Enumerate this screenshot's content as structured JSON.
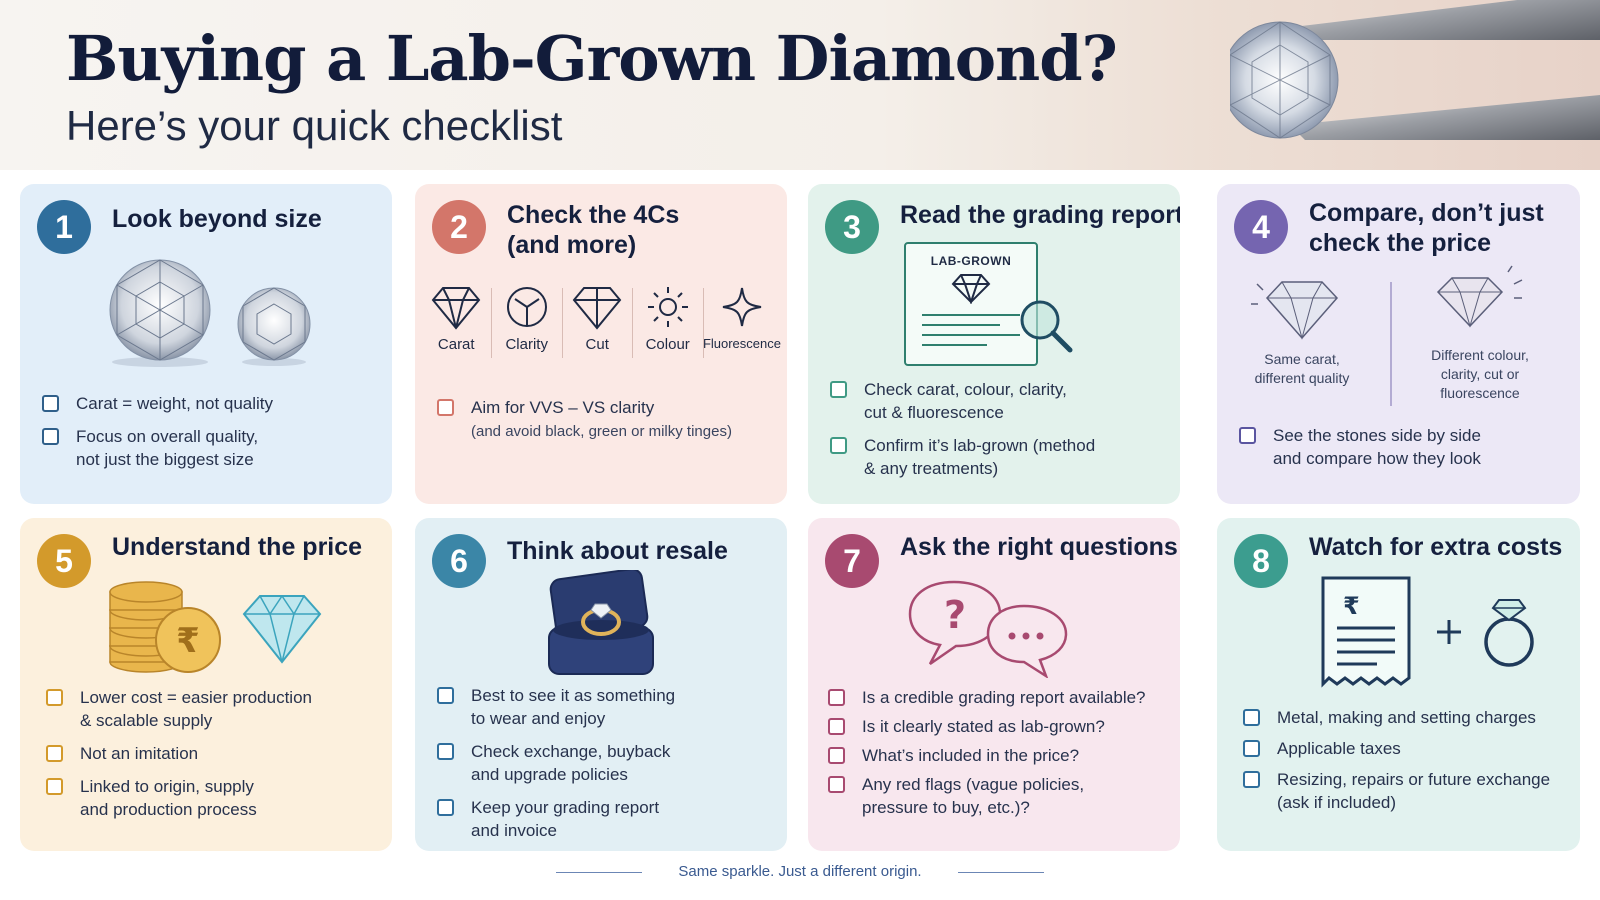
{
  "header": {
    "title": "Buying a Lab-Grown Diamond?",
    "subtitle": "Here’s your quick checklist"
  },
  "cards": [
    {
      "number": "1",
      "title": "Look beyond size",
      "checks": [
        "Carat = weight, not quality",
        "Focus on overall quality,\nnot just the biggest size"
      ]
    },
    {
      "number": "2",
      "title": "Check the 4Cs\n(and more)",
      "four_cs": [
        "Carat",
        "Clarity",
        "Cut",
        "Colour",
        "Fluorescence"
      ],
      "checks": [
        {
          "main": "Aim for VVS – VS clarity",
          "sub": "(and avoid black, green or milky tinges)"
        }
      ]
    },
    {
      "number": "3",
      "title": "Read the grading report",
      "report_label": "LAB-GROWN",
      "checks": [
        "Check carat, colour, clarity,\ncut & fluorescence",
        "Confirm it’s lab-grown (method\n& any treatments)"
      ]
    },
    {
      "number": "4",
      "title": "Compare, don’t just\ncheck the price",
      "compare_left": "Same carat,\ndifferent quality",
      "compare_right": "Different colour,\nclarity, cut or\nfluorescence",
      "checks": [
        "See the stones side by side\nand compare how they look"
      ]
    },
    {
      "number": "5",
      "title": "Understand the price",
      "checks": [
        "Lower cost = easier production\n& scalable supply",
        "Not an imitation",
        "Linked to origin, supply\nand production process"
      ]
    },
    {
      "number": "6",
      "title": "Think about resale",
      "checks": [
        "Best to see it as something\nto wear and enjoy",
        "Check exchange, buyback\nand upgrade policies",
        "Keep your grading report\nand invoice"
      ]
    },
    {
      "number": "7",
      "title": "Ask the right questions",
      "checks": [
        "Is a credible grading report available?",
        "Is it clearly stated as lab-grown?",
        "What’s included in the price?",
        "Any red flags (vague policies,\npressure to buy, etc.)?"
      ]
    },
    {
      "number": "8",
      "title": "Watch for extra costs",
      "checks": [
        "Metal, making and setting charges",
        "Applicable taxes",
        "Resizing, repairs or future exchange\n(ask if included)"
      ]
    }
  ],
  "footer": {
    "tagline": "Same sparkle. Just a different origin."
  },
  "colors": {
    "navy": "#121c3a",
    "blue": "#2f6e9c",
    "coral": "#d3766a",
    "green": "#3f9a84",
    "purple": "#7565b0",
    "gold": "#d39a2b",
    "teal": "#3b86a7",
    "plum": "#a84a70",
    "seafoam": "#3c9d8f"
  }
}
